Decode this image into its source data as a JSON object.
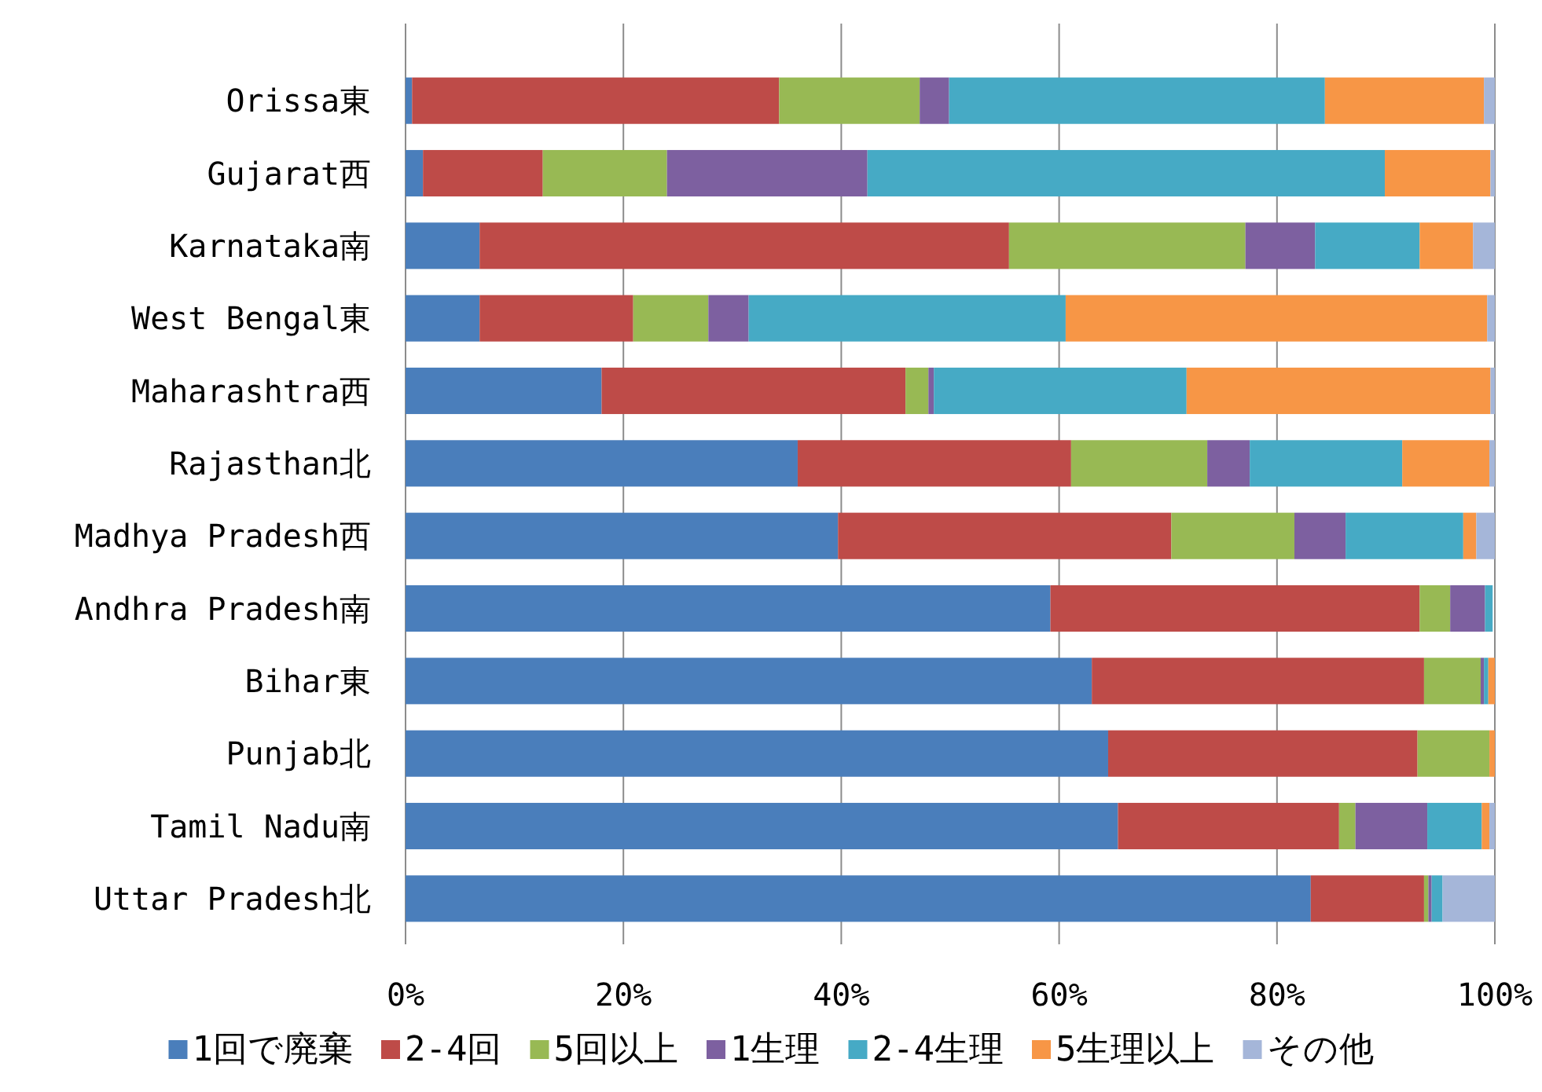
{
  "chart_data": {
    "type": "bar",
    "orientation": "horizontal",
    "stacked": true,
    "categories": [
      "Orissa東",
      "Gujarat西",
      "Karnataka南",
      "West Bengal東",
      "Maharashtra西",
      "Rajasthan北",
      "Madhya Pradesh西",
      "Andhra Pradesh南",
      "Bihar東",
      "Punjab北",
      "Tamil Nadu南",
      "Uttar Pradesh北"
    ],
    "series": [
      {
        "name": "1回で廃棄",
        "color": "#4a7ebb",
        "values": [
          0.6,
          1.6,
          6.8,
          6.8,
          18.0,
          36.0,
          39.7,
          59.2,
          63.0,
          64.5,
          65.4,
          83.1
        ]
      },
      {
        "name": "2-4回",
        "color": "#be4b48",
        "values": [
          33.7,
          11.0,
          48.6,
          14.1,
          27.9,
          25.1,
          30.6,
          33.9,
          30.5,
          28.4,
          20.3,
          10.4
        ]
      },
      {
        "name": "5回以上",
        "color": "#98b954",
        "values": [
          12.9,
          11.4,
          21.7,
          6.9,
          2.1,
          12.5,
          11.3,
          2.8,
          5.2,
          6.6,
          1.5,
          0.4
        ]
      },
      {
        "name": "1生理",
        "color": "#7d60a0",
        "values": [
          2.7,
          18.4,
          6.4,
          3.7,
          0.5,
          3.9,
          4.7,
          3.2,
          0.3,
          0,
          6.6,
          0.3
        ]
      },
      {
        "name": "2-4生理",
        "color": "#46aac5",
        "values": [
          34.5,
          47.5,
          9.6,
          29.1,
          23.2,
          14.0,
          10.8,
          0.7,
          0.4,
          0,
          5.0,
          1.0
        ]
      },
      {
        "name": "5生理以上",
        "color": "#f79646",
        "values": [
          14.6,
          9.7,
          4.9,
          38.7,
          27.9,
          8.0,
          1.2,
          0,
          0.6,
          0.5,
          0.7,
          0
        ]
      },
      {
        "name": "その他",
        "color": "#a5b6d9",
        "values": [
          1.0,
          0.4,
          2.0,
          0.7,
          0.4,
          0.5,
          1.7,
          null,
          0,
          0,
          0.5,
          4.8
        ]
      }
    ],
    "xlim": [
      0,
      100
    ],
    "xticks": [
      {
        "value": 0,
        "label": "0%"
      },
      {
        "value": 20,
        "label": "20%"
      },
      {
        "value": 40,
        "label": "40%"
      },
      {
        "value": 60,
        "label": "60%"
      },
      {
        "value": 80,
        "label": "80%"
      },
      {
        "value": 100,
        "label": "100%"
      }
    ],
    "grid": "x",
    "legend": "bottom"
  }
}
